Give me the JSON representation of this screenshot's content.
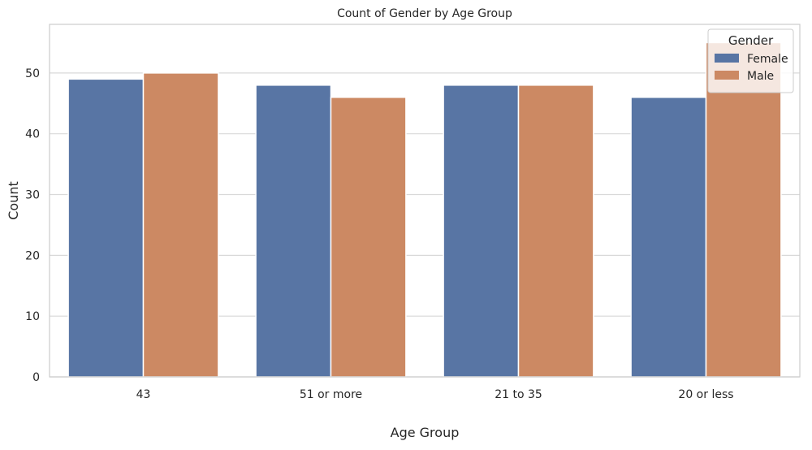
{
  "chart_data": {
    "type": "bar",
    "title": "Count of Gender by Age Group",
    "xlabel": "Age Group",
    "ylabel": "Count",
    "categories": [
      "43",
      "51 or more",
      "21 to 35",
      "20 or less"
    ],
    "series": [
      {
        "name": "Female",
        "values": [
          49,
          48,
          48,
          46
        ],
        "color": "#5875a4"
      },
      {
        "name": "Male",
        "values": [
          50,
          46,
          48,
          55
        ],
        "color": "#cc8963"
      }
    ],
    "ylim": [
      0,
      58
    ],
    "yticks": [
      0,
      10,
      20,
      30,
      40,
      50
    ],
    "grid": true,
    "legend": {
      "title": "Gender",
      "placement": "top-right"
    }
  }
}
